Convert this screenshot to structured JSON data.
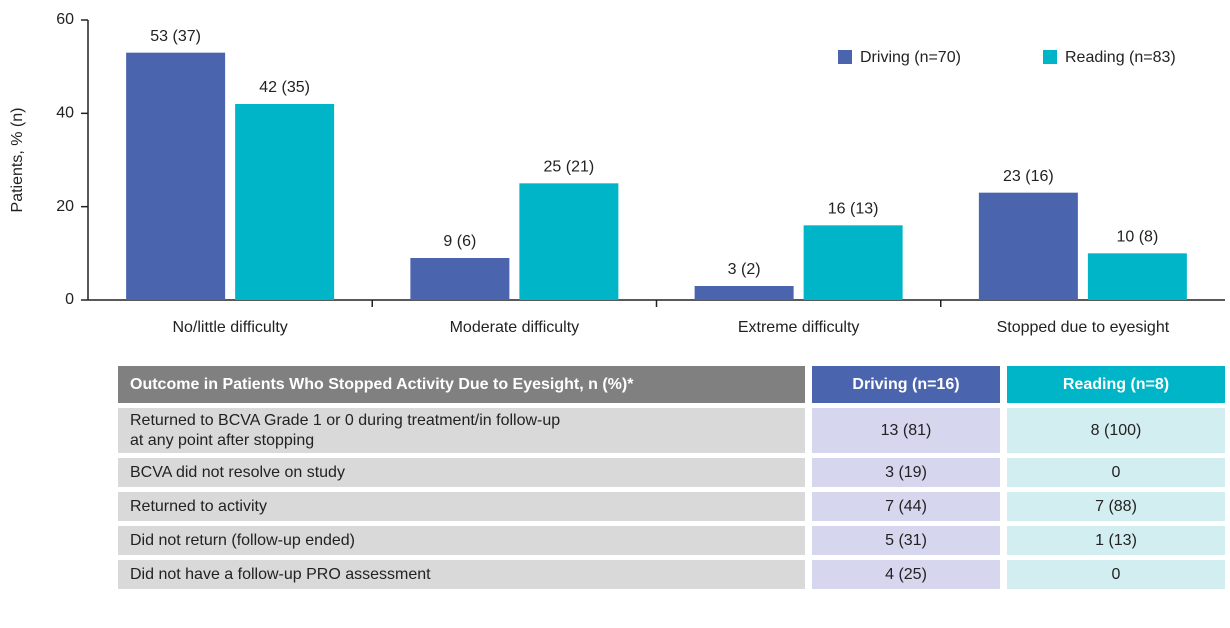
{
  "chart_data": {
    "type": "bar",
    "y_label": "Patients, % (n)",
    "categories": [
      "No/little difficulty",
      "Moderate difficulty",
      "Extreme difficulty",
      "Stopped due to eyesight"
    ],
    "series": [
      {
        "name": "Driving (n=70)",
        "color": "#4a64ae",
        "values": [
          53,
          9,
          3,
          23
        ],
        "value_labels": [
          "53 (37)",
          "9 (6)",
          "3 (2)",
          "23 (16)"
        ]
      },
      {
        "name": "Reading (n=83)",
        "color": "#00b5c8",
        "values": [
          42,
          25,
          16,
          10
        ],
        "value_labels": [
          "42 (35)",
          "25 (21)",
          "16 (13)",
          "10 (8)"
        ]
      }
    ],
    "ylim": [
      0,
      60
    ],
    "yticks": [
      0,
      20,
      40,
      60
    ],
    "grid": false,
    "legend": "top-right"
  },
  "table": {
    "header": [
      "Outcome in Patients Who Stopped Activity Due to Eyesight, n (%)*",
      "Driving (n=16)",
      "Reading (n=8)"
    ],
    "header_colors": [
      "#808080",
      "#4a64ae",
      "#00b5c8"
    ],
    "column_colors": [
      "#d9d9d9",
      "#d6d6ee",
      "#d3eef0"
    ],
    "rows": [
      [
        "Returned to BCVA Grade 1 or 0 during treatment/in follow-up\nat any point after stopping",
        "13 (81)",
        "8 (100)"
      ],
      [
        "BCVA did not resolve on study",
        "3 (19)",
        "0"
      ],
      [
        "Returned to activity",
        "7 (44)",
        "7 (88)"
      ],
      [
        "Did not return (follow-up ended)",
        "5 (31)",
        "1 (13)"
      ],
      [
        "Did not have a follow-up PRO assessment",
        "4 (25)",
        "0"
      ]
    ]
  }
}
